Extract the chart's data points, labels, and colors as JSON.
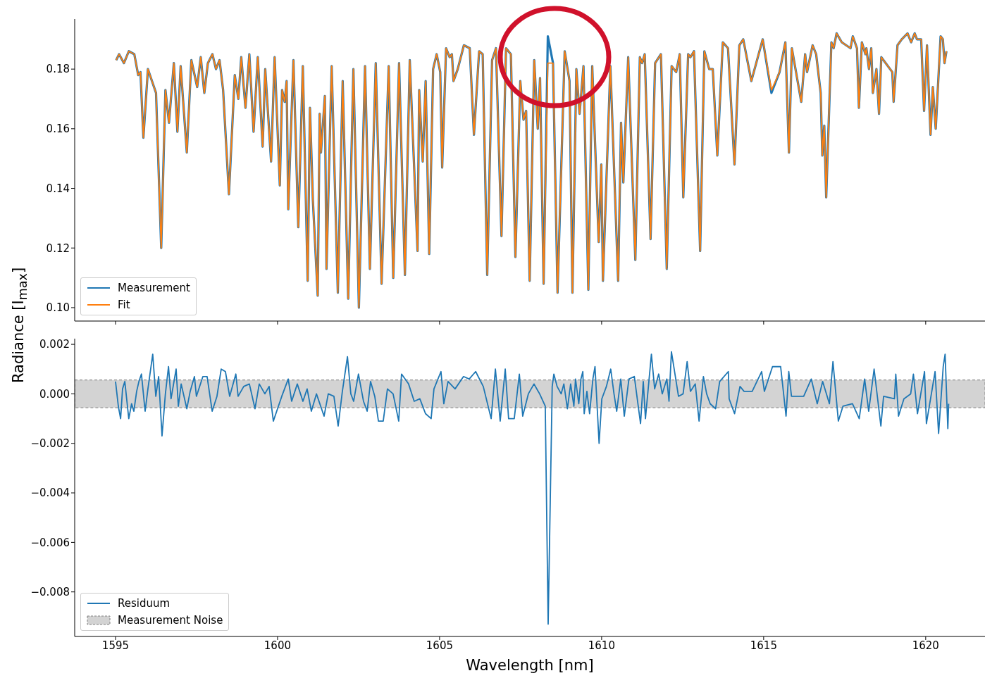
{
  "chart_data": [
    {
      "type": "line",
      "ylabel": "Radiance [I$_{max}$]",
      "legend": "bottom left",
      "marker": "none",
      "tick_labels": "y",
      "xlim": [
        1593.74,
        1621.83
      ],
      "xticks": [
        1595,
        1600,
        1605,
        1610,
        1615,
        1620
      ],
      "ylim": [
        0.0955,
        0.1968
      ],
      "yticks": [
        {
          "value": 0.1,
          "label": "0.10"
        },
        {
          "value": 0.12,
          "label": "0.12"
        },
        {
          "value": 0.14,
          "label": "0.14"
        },
        {
          "value": 0.16,
          "label": "0.16"
        },
        {
          "value": 0.18,
          "label": "0.18"
        }
      ],
      "x": [
        1595.02,
        1595.11,
        1595.26,
        1595.41,
        1595.58,
        1595.7,
        1595.77,
        1595.86,
        1596.0,
        1596.25,
        1596.41,
        1596.54,
        1596.65,
        1596.8,
        1596.91,
        1597.01,
        1597.2,
        1597.34,
        1597.52,
        1597.63,
        1597.74,
        1597.85,
        1597.99,
        1598.1,
        1598.21,
        1598.32,
        1598.5,
        1598.68,
        1598.79,
        1598.88,
        1599.01,
        1599.13,
        1599.26,
        1599.39,
        1599.54,
        1599.62,
        1599.8,
        1599.91,
        1600.07,
        1600.14,
        1600.22,
        1600.28,
        1600.33,
        1600.49,
        1600.64,
        1600.78,
        1600.93,
        1601.0,
        1601.09,
        1601.24,
        1601.3,
        1601.34,
        1601.46,
        1601.51,
        1601.67,
        1601.86,
        1602.01,
        1602.18,
        1602.34,
        1602.51,
        1602.7,
        1602.85,
        1603.03,
        1603.21,
        1603.43,
        1603.57,
        1603.75,
        1603.93,
        1604.08,
        1604.32,
        1604.37,
        1604.48,
        1604.57,
        1604.68,
        1604.8,
        1604.91,
        1605.02,
        1605.08,
        1605.2,
        1605.31,
        1605.38,
        1605.43,
        1605.56,
        1605.75,
        1605.93,
        1606.06,
        1606.22,
        1606.33,
        1606.47,
        1606.62,
        1606.74,
        1606.91,
        1607.05,
        1607.2,
        1607.34,
        1607.49,
        1607.59,
        1607.67,
        1607.78,
        1607.92,
        1608.03,
        1608.1,
        1608.21,
        1608.34,
        1608.5,
        1608.64,
        1608.86,
        1609.01,
        1609.1,
        1609.22,
        1609.32,
        1609.44,
        1609.59,
        1609.71,
        1609.91,
        1609.99,
        1610.04,
        1610.27,
        1610.51,
        1610.6,
        1610.67,
        1610.82,
        1611.04,
        1611.18,
        1611.25,
        1611.33,
        1611.51,
        1611.65,
        1611.83,
        1612.01,
        1612.16,
        1612.3,
        1612.41,
        1612.52,
        1612.67,
        1612.74,
        1612.85,
        1613.04,
        1613.17,
        1613.32,
        1613.43,
        1613.57,
        1613.74,
        1613.9,
        1614.1,
        1614.25,
        1614.37,
        1614.62,
        1614.97,
        1615.24,
        1615.49,
        1615.67,
        1615.78,
        1615.87,
        1616.16,
        1616.28,
        1616.34,
        1616.51,
        1616.62,
        1616.76,
        1616.81,
        1616.87,
        1616.93,
        1617.09,
        1617.16,
        1617.25,
        1617.41,
        1617.68,
        1617.75,
        1617.88,
        1617.94,
        1618.03,
        1618.14,
        1618.17,
        1618.25,
        1618.32,
        1618.37,
        1618.48,
        1618.56,
        1618.63,
        1618.97,
        1619.01,
        1619.13,
        1619.26,
        1619.44,
        1619.55,
        1619.66,
        1619.73,
        1619.86,
        1619.95,
        1620.04,
        1620.15,
        1620.22,
        1620.31,
        1620.46,
        1620.53,
        1620.58,
        1620.64
      ],
      "series": [
        {
          "name": "Measurement",
          "color": "#1f77b4",
          "values": [
            0.183,
            0.185,
            0.182,
            0.186,
            0.185,
            0.178,
            0.179,
            0.157,
            0.18,
            0.172,
            0.12,
            0.173,
            0.162,
            0.182,
            0.159,
            0.181,
            0.152,
            0.183,
            0.174,
            0.184,
            0.172,
            0.182,
            0.185,
            0.18,
            0.183,
            0.173,
            0.138,
            0.178,
            0.17,
            0.184,
            0.167,
            0.185,
            0.159,
            0.184,
            0.154,
            0.18,
            0.149,
            0.184,
            0.141,
            0.173,
            0.169,
            0.176,
            0.133,
            0.183,
            0.127,
            0.181,
            0.109,
            0.167,
            0.136,
            0.104,
            0.165,
            0.152,
            0.171,
            0.113,
            0.181,
            0.105,
            0.176,
            0.103,
            0.18,
            0.1,
            0.181,
            0.113,
            0.182,
            0.108,
            0.181,
            0.11,
            0.182,
            0.111,
            0.183,
            0.119,
            0.173,
            0.149,
            0.176,
            0.118,
            0.18,
            0.185,
            0.179,
            0.147,
            0.187,
            0.184,
            0.185,
            0.176,
            0.18,
            0.188,
            0.187,
            0.158,
            0.186,
            0.185,
            0.111,
            0.183,
            0.187,
            0.124,
            0.187,
            0.185,
            0.117,
            0.176,
            0.163,
            0.166,
            0.109,
            0.183,
            0.16,
            0.177,
            0.108,
            0.191,
            0.182,
            0.105,
            0.186,
            0.176,
            0.105,
            0.18,
            0.165,
            0.181,
            0.106,
            0.181,
            0.122,
            0.148,
            0.109,
            0.181,
            0.109,
            0.162,
            0.142,
            0.184,
            0.116,
            0.184,
            0.182,
            0.185,
            0.123,
            0.182,
            0.185,
            0.113,
            0.181,
            0.179,
            0.185,
            0.137,
            0.185,
            0.184,
            0.186,
            0.119,
            0.186,
            0.18,
            0.18,
            0.151,
            0.189,
            0.187,
            0.148,
            0.188,
            0.19,
            0.176,
            0.19,
            0.172,
            0.179,
            0.189,
            0.152,
            0.187,
            0.169,
            0.185,
            0.179,
            0.188,
            0.185,
            0.172,
            0.151,
            0.161,
            0.137,
            0.189,
            0.187,
            0.192,
            0.189,
            0.187,
            0.191,
            0.187,
            0.167,
            0.189,
            0.185,
            0.187,
            0.18,
            0.187,
            0.172,
            0.18,
            0.165,
            0.184,
            0.179,
            0.169,
            0.188,
            0.19,
            0.192,
            0.189,
            0.192,
            0.19,
            0.19,
            0.166,
            0.188,
            0.158,
            0.174,
            0.16,
            0.191,
            0.19,
            0.182,
            0.186
          ]
        },
        {
          "name": "Fit",
          "color": "#ff7f0e",
          "values": [
            0.183,
            0.185,
            0.182,
            0.186,
            0.185,
            0.178,
            0.179,
            0.157,
            0.18,
            0.172,
            0.12,
            0.173,
            0.162,
            0.182,
            0.159,
            0.181,
            0.152,
            0.183,
            0.174,
            0.184,
            0.172,
            0.182,
            0.185,
            0.18,
            0.183,
            0.173,
            0.138,
            0.178,
            0.17,
            0.184,
            0.167,
            0.185,
            0.159,
            0.184,
            0.154,
            0.18,
            0.149,
            0.184,
            0.141,
            0.173,
            0.169,
            0.176,
            0.133,
            0.183,
            0.127,
            0.181,
            0.109,
            0.167,
            0.136,
            0.104,
            0.165,
            0.152,
            0.171,
            0.113,
            0.181,
            0.105,
            0.176,
            0.103,
            0.18,
            0.1,
            0.181,
            0.113,
            0.182,
            0.108,
            0.181,
            0.11,
            0.182,
            0.111,
            0.183,
            0.119,
            0.173,
            0.149,
            0.176,
            0.118,
            0.18,
            0.185,
            0.179,
            0.147,
            0.187,
            0.184,
            0.185,
            0.176,
            0.18,
            0.188,
            0.187,
            0.158,
            0.186,
            0.185,
            0.111,
            0.183,
            0.187,
            0.124,
            0.187,
            0.185,
            0.117,
            0.176,
            0.163,
            0.166,
            0.109,
            0.183,
            0.16,
            0.177,
            0.108,
            0.182,
            0.182,
            0.105,
            0.186,
            0.176,
            0.105,
            0.18,
            0.165,
            0.181,
            0.106,
            0.181,
            0.122,
            0.148,
            0.109,
            0.181,
            0.109,
            0.162,
            0.142,
            0.184,
            0.116,
            0.184,
            0.182,
            0.185,
            0.123,
            0.182,
            0.185,
            0.113,
            0.181,
            0.179,
            0.185,
            0.137,
            0.185,
            0.184,
            0.186,
            0.119,
            0.186,
            0.18,
            0.18,
            0.151,
            0.189,
            0.187,
            0.148,
            0.188,
            0.19,
            0.176,
            0.19,
            0.173,
            0.179,
            0.189,
            0.152,
            0.187,
            0.169,
            0.185,
            0.179,
            0.188,
            0.185,
            0.172,
            0.151,
            0.161,
            0.137,
            0.189,
            0.187,
            0.192,
            0.189,
            0.187,
            0.191,
            0.187,
            0.167,
            0.189,
            0.185,
            0.187,
            0.18,
            0.187,
            0.172,
            0.18,
            0.165,
            0.184,
            0.179,
            0.169,
            0.188,
            0.19,
            0.192,
            0.189,
            0.192,
            0.19,
            0.19,
            0.166,
            0.188,
            0.158,
            0.174,
            0.16,
            0.191,
            0.19,
            0.182,
            0.186
          ]
        }
      ]
    },
    {
      "type": "line",
      "xlabel": "Wavelength [nm]",
      "legend": "bottom left",
      "marker": "none",
      "xlim": [
        1593.74,
        1621.83
      ],
      "xticks": [
        1595,
        1600,
        1605,
        1610,
        1615,
        1620
      ],
      "ylim": [
        -0.0098,
        0.00223
      ],
      "yticks": [
        {
          "value": -0.008,
          "label": "−0.008"
        },
        {
          "value": -0.006,
          "label": "−0.006"
        },
        {
          "value": -0.004,
          "label": "−0.004"
        },
        {
          "value": -0.002,
          "label": "−0.002"
        },
        {
          "value": 0,
          "label": "0.000"
        },
        {
          "value": 0.002,
          "label": "0.002"
        }
      ],
      "series": [
        {
          "name": "Residuum",
          "color": "#1f77b4",
          "x": [
            1595.0,
            1595.087,
            1595.157,
            1595.217,
            1595.287,
            1595.409,
            1595.496,
            1595.565,
            1595.652,
            1595.722,
            1595.8,
            1595.913,
            1596.0,
            1596.148,
            1596.243,
            1596.33,
            1596.435,
            1596.539,
            1596.635,
            1596.713,
            1596.87,
            1596.939,
            1597.026,
            1597.2,
            1597.304,
            1597.435,
            1597.496,
            1597.696,
            1597.826,
            1597.983,
            1598.13,
            1598.261,
            1598.391,
            1598.522,
            1598.713,
            1598.783,
            1598.957,
            1599.13,
            1599.304,
            1599.435,
            1599.609,
            1599.739,
            1599.87,
            1600.0,
            1600.13,
            1600.33,
            1600.435,
            1600.609,
            1600.783,
            1600.913,
            1601.043,
            1601.2,
            1601.435,
            1601.565,
            1601.739,
            1601.87,
            1602.0,
            1602.157,
            1602.261,
            1602.348,
            1602.496,
            1602.652,
            1602.765,
            1602.87,
            1603.0,
            1603.113,
            1603.261,
            1603.391,
            1603.565,
            1603.739,
            1603.826,
            1604.043,
            1604.217,
            1604.391,
            1604.565,
            1604.739,
            1604.826,
            1605.043,
            1605.13,
            1605.261,
            1605.478,
            1605.739,
            1605.913,
            1606.113,
            1606.348,
            1606.591,
            1606.722,
            1606.87,
            1607.026,
            1607.13,
            1607.304,
            1607.461,
            1607.565,
            1607.739,
            1607.913,
            1608.087,
            1608.261,
            1608.35,
            1608.475,
            1608.526,
            1608.626,
            1608.751,
            1608.835,
            1608.944,
            1609.044,
            1609.144,
            1609.194,
            1609.295,
            1609.362,
            1609.42,
            1609.462,
            1609.546,
            1609.629,
            1609.73,
            1609.796,
            1609.922,
            1610.006,
            1610.148,
            1610.281,
            1610.382,
            1610.465,
            1610.591,
            1610.699,
            1610.842,
            1611.009,
            1611.201,
            1611.285,
            1611.352,
            1611.536,
            1611.636,
            1611.761,
            1611.87,
            1612.012,
            1612.079,
            1612.154,
            1612.372,
            1612.514,
            1612.639,
            1612.74,
            1612.89,
            1613.007,
            1613.141,
            1613.241,
            1613.35,
            1613.517,
            1613.643,
            1613.91,
            1613.935,
            1614.102,
            1614.27,
            1614.395,
            1614.646,
            1614.938,
            1615.022,
            1615.273,
            1615.524,
            1615.691,
            1615.775,
            1615.858,
            1616.235,
            1616.469,
            1616.653,
            1616.82,
            1617.029,
            1617.138,
            1617.305,
            1617.447,
            1617.74,
            1617.949,
            1618.116,
            1618.241,
            1618.408,
            1618.617,
            1618.701,
            1619.035,
            1619.077,
            1619.161,
            1619.328,
            1619.537,
            1619.621,
            1619.746,
            1619.964,
            1620.022,
            1620.29,
            1620.398,
            1620.541,
            1620.599,
            1620.683,
            1620.708
          ],
          "values": [
            0.0005,
            -0.0005,
            -0.001,
            0.0002,
            0.0005,
            -0.001,
            -0.0004,
            -0.0007,
            0.0001,
            0.0005,
            0.0008,
            -0.0007,
            0.0002,
            0.0016,
            -0.0001,
            0.0007,
            -0.0017,
            0,
            0.0011,
            -0.0002,
            0.001,
            -0.0005,
            0.0004,
            -0.0006,
            0.0001,
            0.0007,
            -0.0001,
            0.0007,
            0.0007,
            -0.0007,
            -0.0001,
            0.001,
            0.0009,
            -0.0001,
            0.0008,
            -0.0001,
            0.0003,
            0.0004,
            -0.0006,
            0.0004,
            0,
            0.0003,
            -0.0011,
            -0.0006,
            -0.0001,
            0.0006,
            -0.0003,
            0.0004,
            -0.0003,
            0.0002,
            -0.0007,
            0,
            -0.0009,
            0,
            -0.0001,
            -0.0013,
            0.0001,
            0.0015,
            0,
            -0.0003,
            0.0008,
            -0.0003,
            -0.0007,
            0.0005,
            -0.0001,
            -0.0011,
            -0.0011,
            0.0002,
            0,
            -0.0011,
            0.0008,
            0.0004,
            -0.0003,
            -0.0002,
            -0.0008,
            -0.001,
            0.0002,
            0.0009,
            -0.0004,
            0.0005,
            0.0002,
            0.0007,
            0.0006,
            0.0009,
            0.0003,
            -0.001,
            0.001,
            -0.0011,
            0.001,
            -0.001,
            -0.001,
            0.0008,
            -0.0009,
            0,
            0.0004,
            0,
            -0.0005,
            -0.0093,
            0.0003,
            0.0008,
            0.0003,
            0,
            0.0004,
            -0.0006,
            0.0004,
            -0.0005,
            0.0006,
            -0.0004,
            0.0006,
            0.0009,
            -0.0008,
            0.0001,
            -0.0008,
            0.0006,
            0.0011,
            -0.002,
            -0.0002,
            0.0003,
            0.001,
            0,
            -0.0007,
            0.0006,
            -0.0009,
            0.0006,
            0.0007,
            -0.0012,
            0.0005,
            -0.001,
            0.0016,
            0.0002,
            0.0008,
            0,
            0.0006,
            -0.0003,
            0.0017,
            -0.0001,
            0,
            0.0013,
            0.0001,
            0.0004,
            -0.0011,
            0.0007,
            0,
            -0.0004,
            -0.0006,
            0.0005,
            0.0009,
            -0.0002,
            -0.0008,
            0.0003,
            0.0001,
            0.0001,
            0.0009,
            0.0001,
            0.0011,
            0.0011,
            -0.0009,
            0.0009,
            -0.0001,
            -0.0001,
            0.0006,
            -0.0004,
            0.0005,
            -0.0004,
            0.0013,
            -0.0011,
            -0.0005,
            -0.0004,
            -0.001,
            0.0006,
            -0.0007,
            0.001,
            -0.0013,
            -0.0001,
            -0.0002,
            0.0008,
            -0.0009,
            -0.0002,
            0,
            0.0008,
            -0.0008,
            0.0009,
            -0.0012,
            0.0009,
            -0.0016,
            0.0011,
            0.0016,
            -0.0014,
            -0.0004
          ]
        }
      ],
      "bands": [
        {
          "axis": "y",
          "from": -0.00056,
          "to": 0.00056,
          "label": "Measurement Noise",
          "color": "#d3d3d3"
        }
      ]
    }
  ]
}
